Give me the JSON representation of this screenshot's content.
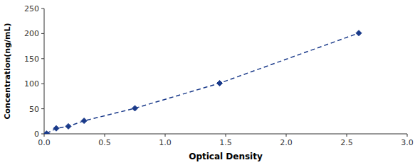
{
  "chart_data": {
    "type": "line",
    "x": [
      0.02,
      0.1,
      0.2,
      0.33,
      0.75,
      1.45,
      2.6
    ],
    "values": [
      0.5,
      11,
      15,
      26,
      51,
      101,
      201
    ],
    "color": "#1a3a8a",
    "marker": "diamond",
    "line_style": "dashed",
    "xlabel": "Optical Density",
    "ylabel": "Concentration(ng/mL)",
    "xlim": [
      0,
      3
    ],
    "ylim": [
      0,
      250
    ],
    "xticks": [
      {
        "value": 0,
        "label": "0.0"
      },
      0.5,
      {
        "value": 1,
        "label": "1.0"
      },
      1.5,
      {
        "value": 2,
        "label": "2.0"
      },
      2.5,
      {
        "value": 3,
        "label": "3.0"
      }
    ],
    "yticks": [
      0,
      50,
      100,
      150,
      200,
      250
    ],
    "grid": false
  }
}
